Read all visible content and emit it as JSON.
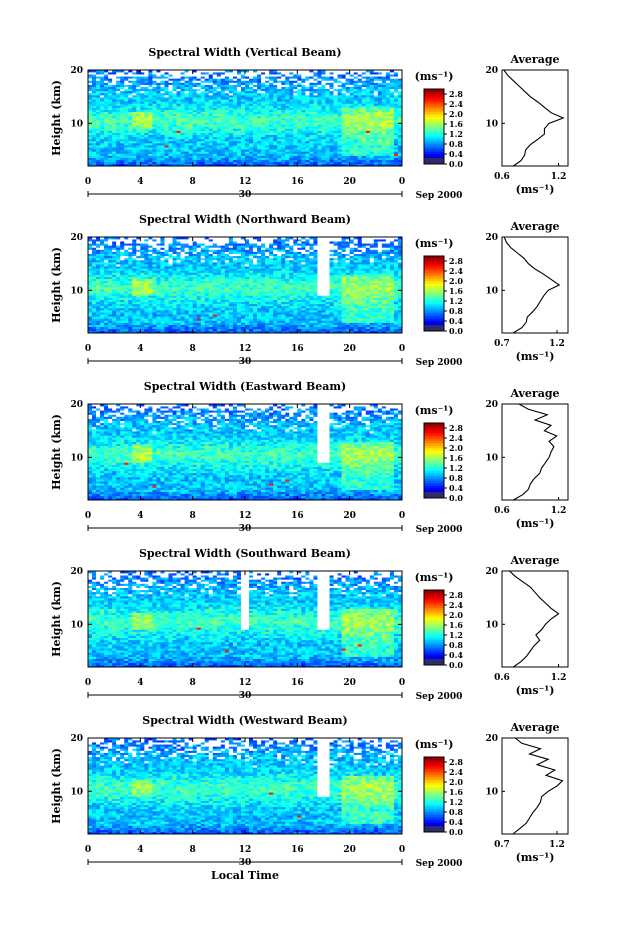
{
  "figure": {
    "x_axis_label": "Local Time",
    "date_day": "30",
    "date_month_year": "Sep 2000"
  },
  "chart_data": [
    {
      "type": "heatmap",
      "title": "Spectral Width (Vertical Beam)",
      "ylabel": "Height (km)",
      "unit_label": "(ms⁻¹)",
      "x_ticks": [
        "0",
        "4",
        "8",
        "12",
        "16",
        "20",
        "0"
      ],
      "xlim": [
        0,
        24
      ],
      "y_ticks": [
        "20",
        "10"
      ],
      "ylim": [
        2,
        20
      ],
      "colorbar": {
        "ticks": [
          "2.8",
          "2.4",
          "2.0",
          "1.6",
          "1.2",
          "0.8",
          "0.4",
          "0.0"
        ],
        "range": [
          0.0,
          3.0
        ]
      },
      "gaps_hours": [],
      "average_profile": {
        "title": "Average",
        "xlabel": "(ms⁻¹)",
        "x_ticks": [
          "0.6",
          "1.2"
        ],
        "xlim": [
          0.6,
          1.3
        ],
        "y_ticks": [
          "20",
          "10"
        ],
        "ylim": [
          2,
          20
        ],
        "height_km": [
          2,
          3,
          4,
          5,
          6,
          7,
          8,
          9,
          10,
          11,
          12,
          13,
          14,
          15,
          16,
          17,
          18,
          19,
          20
        ],
        "width_ms": [
          0.72,
          0.8,
          0.84,
          0.85,
          0.9,
          0.98,
          1.05,
          1.05,
          1.1,
          1.25,
          1.12,
          1.05,
          0.98,
          0.9,
          0.84,
          0.78,
          0.72,
          0.66,
          0.62
        ]
      }
    },
    {
      "type": "heatmap",
      "title": "Spectral Width (Northward Beam)",
      "ylabel": "Height (km)",
      "unit_label": "(ms⁻¹)",
      "x_ticks": [
        "0",
        "4",
        "8",
        "12",
        "16",
        "20",
        "0"
      ],
      "xlim": [
        0,
        24
      ],
      "y_ticks": [
        "20",
        "10"
      ],
      "ylim": [
        2,
        20
      ],
      "colorbar": {
        "ticks": [
          "2.8",
          "2.4",
          "2.0",
          "1.6",
          "1.2",
          "0.8",
          "0.4",
          "0.0"
        ],
        "range": [
          0.0,
          3.0
        ]
      },
      "gaps_hours": [
        18
      ],
      "average_profile": {
        "title": "Average",
        "xlabel": "(ms⁻¹)",
        "x_ticks": [
          "0.7",
          "1.2"
        ],
        "xlim": [
          0.7,
          1.3
        ],
        "y_ticks": [
          "20",
          "10"
        ],
        "ylim": [
          2,
          20
        ],
        "height_km": [
          2,
          3,
          4,
          5,
          6,
          7,
          8,
          9,
          10,
          11,
          12,
          13,
          14,
          15,
          16,
          17,
          18,
          19,
          20
        ],
        "width_ms": [
          0.8,
          0.88,
          0.92,
          0.93,
          0.98,
          1.02,
          1.05,
          1.08,
          1.12,
          1.22,
          1.15,
          1.08,
          1.0,
          0.94,
          0.9,
          0.84,
          0.78,
          0.74,
          0.72
        ]
      }
    },
    {
      "type": "heatmap",
      "title": "Spectral Width (Eastward Beam)",
      "ylabel": "Height (km)",
      "unit_label": "(ms⁻¹)",
      "x_ticks": [
        "0",
        "4",
        "8",
        "12",
        "16",
        "20",
        "0"
      ],
      "xlim": [
        0,
        24
      ],
      "y_ticks": [
        "20",
        "10"
      ],
      "ylim": [
        2,
        20
      ],
      "colorbar": {
        "ticks": [
          "2.8",
          "2.4",
          "2.0",
          "1.6",
          "1.2",
          "0.8",
          "0.4",
          "0.0"
        ],
        "range": [
          0.0,
          3.0
        ]
      },
      "gaps_hours": [
        18
      ],
      "average_profile": {
        "title": "Average",
        "xlabel": "(ms⁻¹)",
        "x_ticks": [
          "0.6",
          "1.2"
        ],
        "xlim": [
          0.6,
          1.3
        ],
        "y_ticks": [
          "20",
          "10"
        ],
        "ylim": [
          2,
          20
        ],
        "height_km": [
          2,
          3,
          4,
          5,
          6,
          7,
          8,
          9,
          10,
          11,
          12,
          13,
          14,
          15,
          16,
          17,
          18,
          19,
          20
        ],
        "width_ms": [
          0.72,
          0.82,
          0.88,
          0.9,
          0.94,
          1.0,
          1.02,
          1.06,
          1.1,
          1.12,
          1.15,
          1.1,
          1.18,
          1.05,
          1.12,
          0.95,
          1.08,
          0.88,
          0.78
        ]
      }
    },
    {
      "type": "heatmap",
      "title": "Spectral Width (Southward Beam)",
      "ylabel": "Height (km)",
      "unit_label": "(ms⁻¹)",
      "x_ticks": [
        "0",
        "4",
        "8",
        "12",
        "16",
        "20",
        "0"
      ],
      "xlim": [
        0,
        24
      ],
      "y_ticks": [
        "20",
        "10"
      ],
      "ylim": [
        2,
        20
      ],
      "colorbar": {
        "ticks": [
          "2.8",
          "2.4",
          "2.0",
          "1.6",
          "1.2",
          "0.8",
          "0.4",
          "0.0"
        ],
        "range": [
          0.0,
          3.0
        ]
      },
      "gaps_hours": [
        12,
        18
      ],
      "average_profile": {
        "title": "Average",
        "xlabel": "(ms⁻¹)",
        "x_ticks": [
          "0.6",
          "1.2"
        ],
        "xlim": [
          0.6,
          1.3
        ],
        "y_ticks": [
          "20",
          "10"
        ],
        "ylim": [
          2,
          20
        ],
        "height_km": [
          2,
          3,
          4,
          5,
          6,
          7,
          8,
          9,
          10,
          11,
          12,
          13,
          14,
          15,
          16,
          17,
          18,
          19,
          20
        ],
        "width_ms": [
          0.72,
          0.8,
          0.86,
          0.9,
          0.94,
          1.0,
          0.96,
          1.02,
          1.06,
          1.12,
          1.2,
          1.12,
          1.06,
          1.0,
          0.95,
          0.9,
          0.82,
          0.74,
          0.68
        ]
      }
    },
    {
      "type": "heatmap",
      "title": "Spectral Width (Westward Beam)",
      "ylabel": "Height (km)",
      "unit_label": "(ms⁻¹)",
      "x_ticks": [
        "0",
        "4",
        "8",
        "12",
        "16",
        "20",
        "0"
      ],
      "xlim": [
        0,
        24
      ],
      "y_ticks": [
        "20",
        "10"
      ],
      "ylim": [
        2,
        20
      ],
      "colorbar": {
        "ticks": [
          "2.8",
          "2.4",
          "2.0",
          "1.6",
          "1.2",
          "0.8",
          "0.4",
          "0.0"
        ],
        "range": [
          0.0,
          3.0
        ]
      },
      "gaps_hours": [
        18
      ],
      "average_profile": {
        "title": "Average",
        "xlabel": "(ms⁻¹)",
        "x_ticks": [
          "0.7",
          "1.2"
        ],
        "xlim": [
          0.7,
          1.3
        ],
        "y_ticks": [
          "20",
          "10"
        ],
        "ylim": [
          2,
          20
        ],
        "height_km": [
          2,
          3,
          4,
          5,
          6,
          7,
          8,
          9,
          10,
          11,
          12,
          13,
          14,
          15,
          16,
          17,
          18,
          19,
          20
        ],
        "width_ms": [
          0.8,
          0.86,
          0.92,
          0.95,
          0.98,
          1.02,
          1.05,
          1.06,
          1.12,
          1.2,
          1.25,
          1.1,
          1.18,
          1.02,
          1.12,
          0.95,
          1.05,
          0.88,
          0.82
        ]
      }
    }
  ]
}
